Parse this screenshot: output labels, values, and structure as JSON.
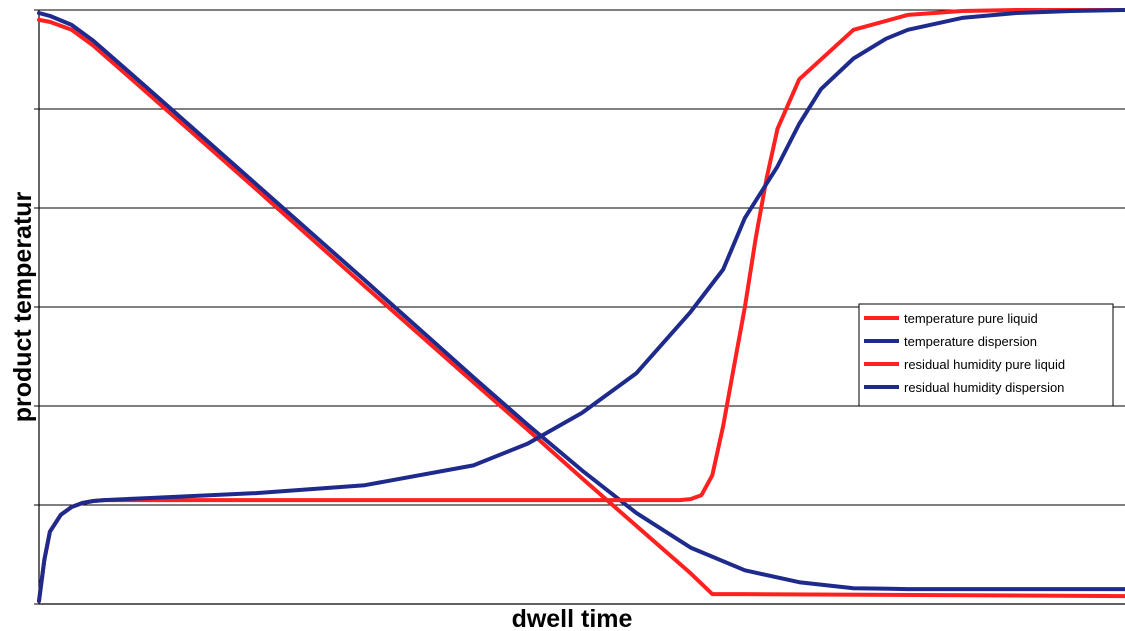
{
  "chart_data": {
    "type": "line",
    "title": "",
    "xlabel": "dwell time",
    "ylabel": "product temperatur",
    "xlim": [
      0,
      100
    ],
    "ylim": [
      0,
      6
    ],
    "grid": true,
    "legend_position": "right",
    "colors": {
      "red": "#ff2020",
      "blue": "#1e2a8c"
    },
    "series": [
      {
        "name": "temperature pure liquid",
        "color": "#ff2020",
        "x": [
          0,
          1,
          3,
          5,
          10,
          20,
          30,
          40,
          45,
          50,
          55,
          60,
          62,
          65,
          100
        ],
        "y": [
          5.9,
          5.88,
          5.8,
          5.64,
          5.16,
          4.19,
          3.21,
          2.24,
          1.76,
          1.27,
          0.79,
          0.31,
          0.1,
          0.1,
          0.08
        ]
      },
      {
        "name": "temperature dispersion",
        "color": "#1e2a8c",
        "x": [
          0,
          1,
          3,
          5,
          10,
          20,
          30,
          40,
          45,
          50,
          55,
          60,
          65,
          70,
          75,
          80,
          90,
          100
        ],
        "y": [
          5.97,
          5.94,
          5.85,
          5.69,
          5.21,
          4.24,
          3.27,
          2.29,
          1.81,
          1.35,
          0.92,
          0.57,
          0.34,
          0.22,
          0.16,
          0.15,
          0.15,
          0.15
        ]
      },
      {
        "name": "residual humidity pure liquid",
        "color": "#ff2020",
        "x": [
          0,
          0.5,
          1,
          2,
          3,
          4,
          5,
          6,
          10,
          20,
          30,
          40,
          50,
          55,
          58,
          59,
          60,
          61,
          62,
          63,
          64,
          65,
          66,
          67,
          68,
          70,
          75,
          80,
          85,
          90,
          95,
          100
        ],
        "y": [
          0.03,
          0.45,
          0.73,
          0.9,
          0.98,
          1.02,
          1.04,
          1.05,
          1.05,
          1.05,
          1.05,
          1.05,
          1.05,
          1.05,
          1.05,
          1.05,
          1.06,
          1.1,
          1.3,
          1.8,
          2.4,
          3.0,
          3.7,
          4.3,
          4.8,
          5.3,
          5.8,
          5.95,
          5.99,
          6.0,
          6.0,
          6.0
        ]
      },
      {
        "name": "residual humidity dispersion",
        "color": "#1e2a8c",
        "x": [
          0,
          0.5,
          1,
          2,
          3,
          4,
          5,
          6,
          10,
          20,
          30,
          40,
          45,
          50,
          55,
          60,
          63,
          65,
          68,
          70,
          72,
          75,
          78,
          80,
          85,
          90,
          95,
          100
        ],
        "y": [
          0.03,
          0.45,
          0.73,
          0.9,
          0.98,
          1.02,
          1.04,
          1.05,
          1.07,
          1.12,
          1.2,
          1.4,
          1.62,
          1.93,
          2.33,
          2.95,
          3.38,
          3.9,
          4.42,
          4.85,
          5.2,
          5.51,
          5.71,
          5.8,
          5.92,
          5.97,
          5.99,
          6.0
        ]
      }
    ]
  }
}
